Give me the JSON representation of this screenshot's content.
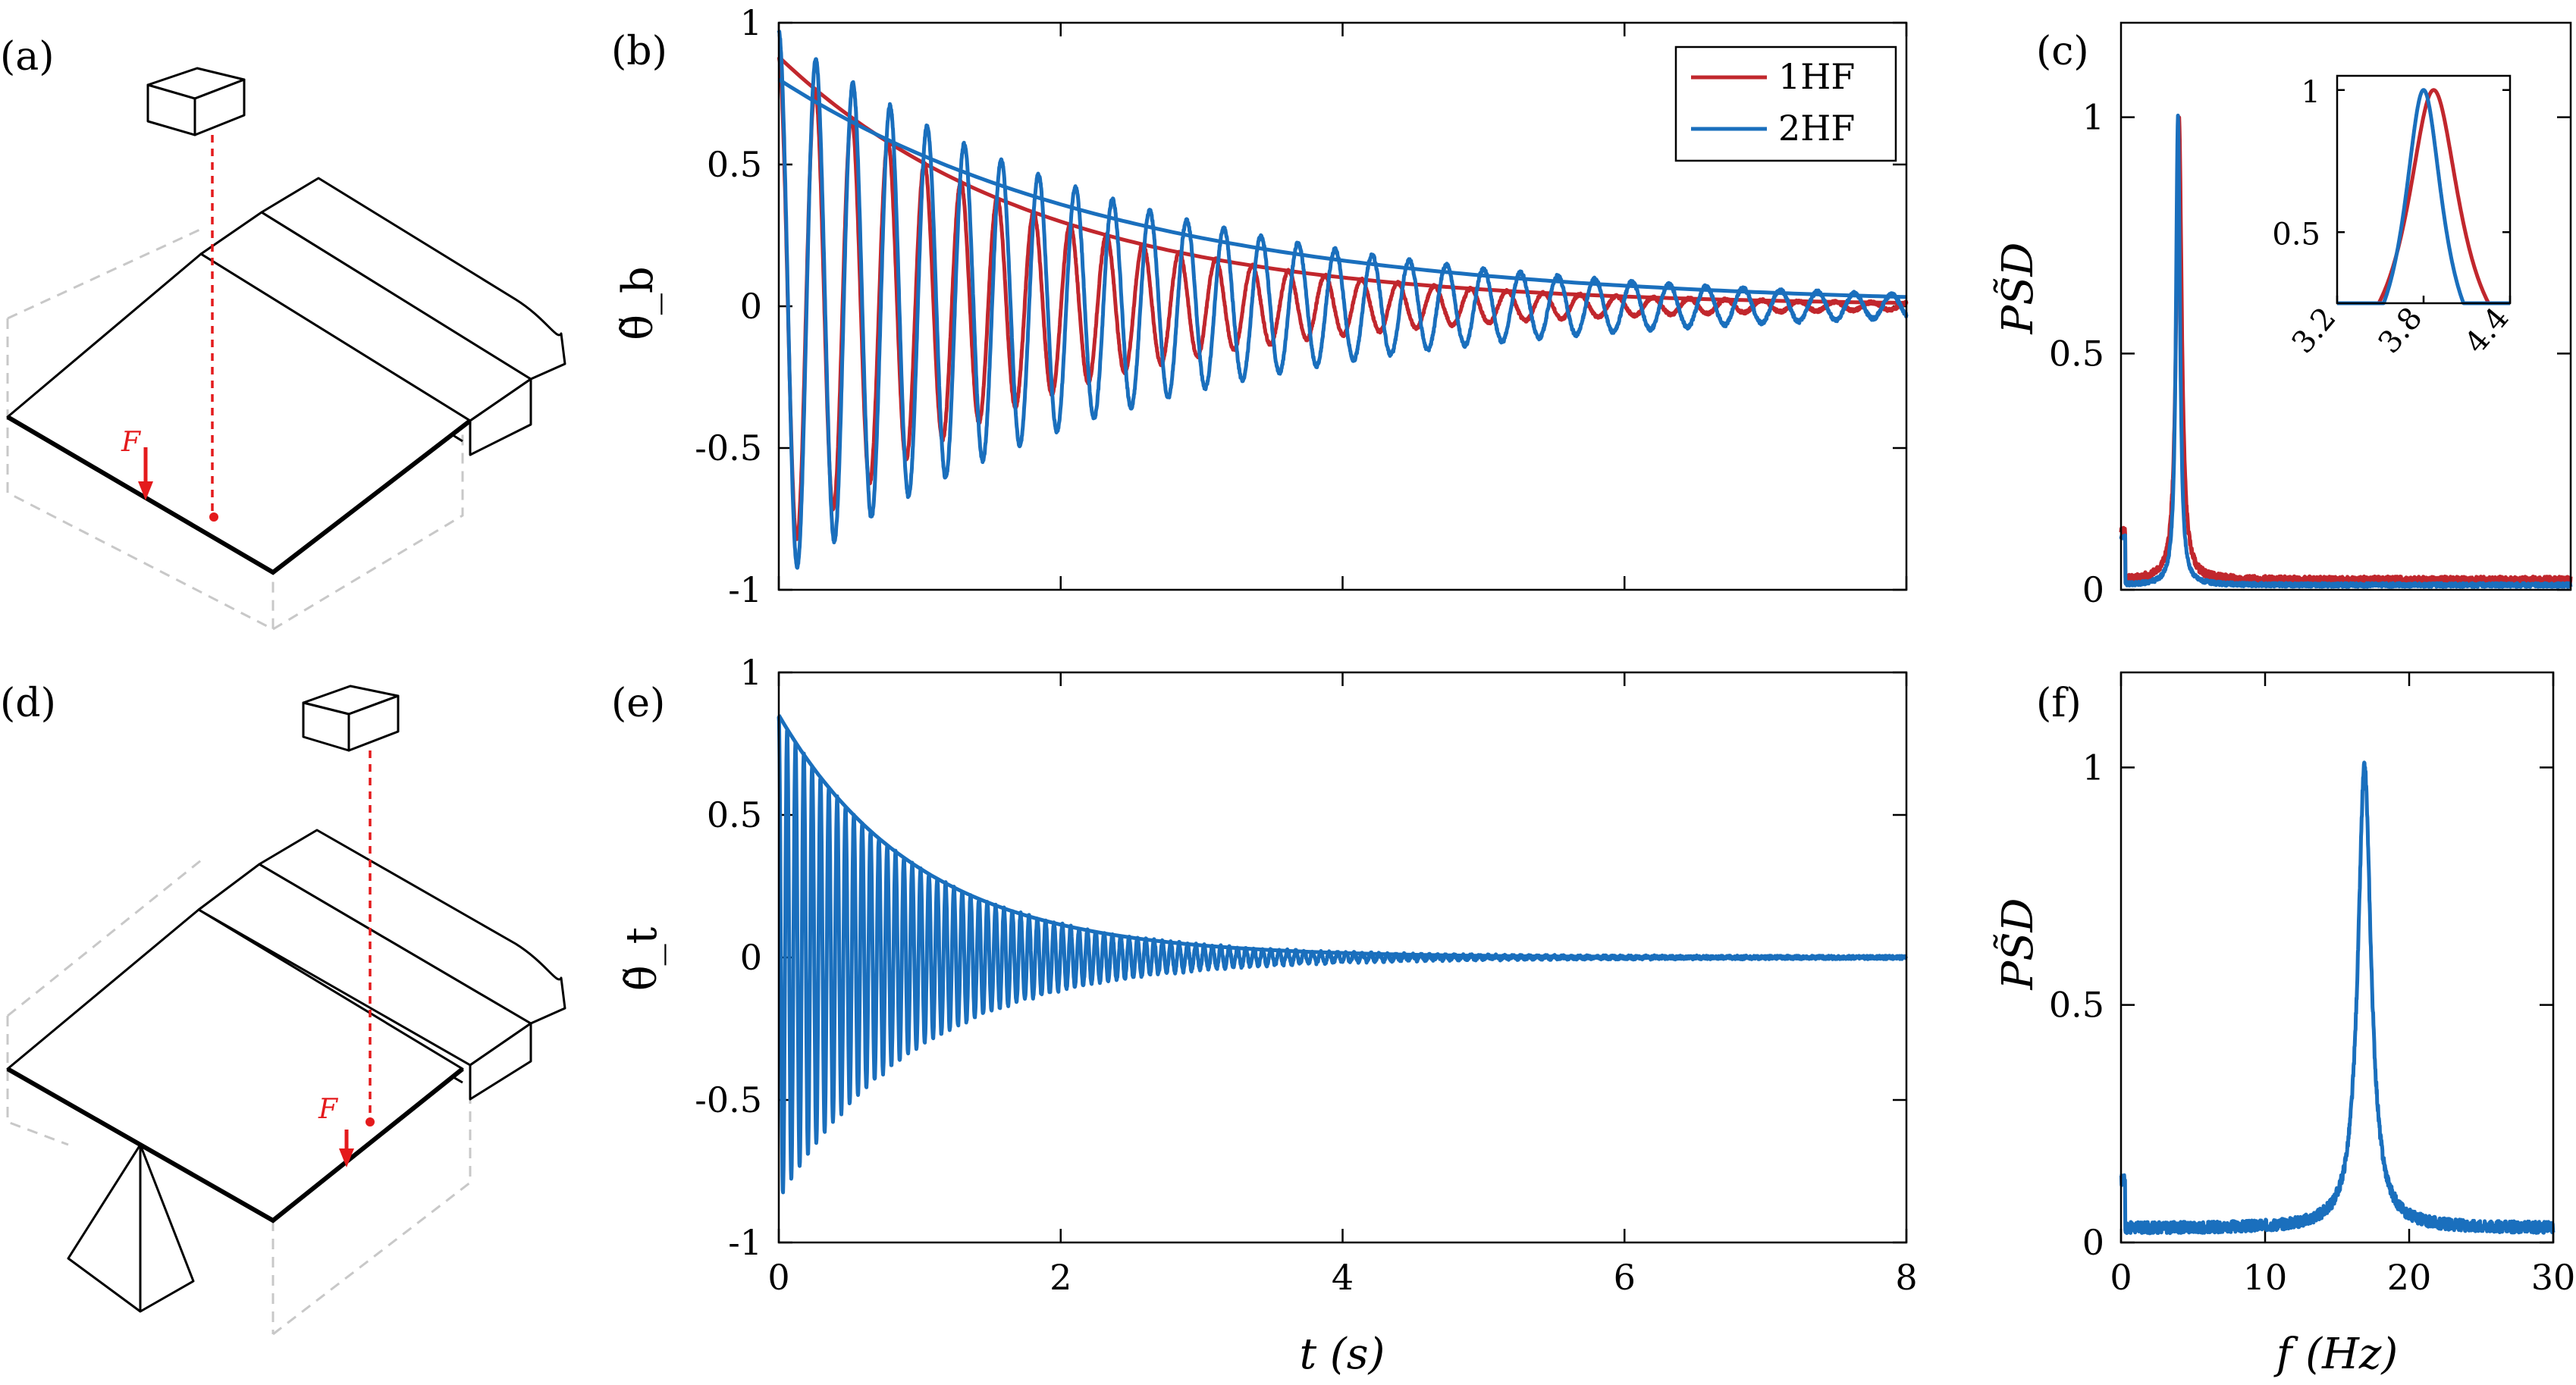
{
  "panel_labels": [
    "(a)",
    "(b)",
    "(c)",
    "(d)",
    "(e)",
    "(f)"
  ],
  "sketch": {
    "force_label": "F"
  },
  "colors": {
    "red": "#c1272d",
    "blue": "#1a6fbd"
  },
  "chart_data": [
    {
      "id": "b",
      "type": "line",
      "title": "",
      "xlabel": "t (s)",
      "ylabel": "θ̃_b",
      "xlim": [
        0,
        8
      ],
      "ylim": [
        -1,
        1
      ],
      "xticks": [
        "0",
        "2",
        "4",
        "6",
        "8"
      ],
      "yticks": [
        "-1",
        "-0.5",
        "0",
        "0.5",
        "1"
      ],
      "legend": {
        "placement": "top-right",
        "entries": [
          "1HF",
          "2HF"
        ]
      },
      "series": [
        {
          "name": "1HF",
          "color": "#c1272d",
          "model": "damped_cosine",
          "amp": 0.88,
          "freq_hz": 3.87,
          "decay_per_s": 0.54,
          "envelope": true,
          "noise": 0.01
        },
        {
          "name": "2HF",
          "color": "#1a6fbd",
          "model": "damped_cosine",
          "amp": 0.97,
          "freq_hz": 3.8,
          "decay_per_s": 0.4,
          "envelope": true,
          "envelope_amp": 0.8,
          "noise": 0.012
        }
      ]
    },
    {
      "id": "c",
      "type": "line",
      "title": "",
      "xlabel": "",
      "ylabel": "PS̃D",
      "xlim": [
        0,
        30
      ],
      "ylim": [
        0,
        1.2
      ],
      "yticks": [
        "0",
        "0.5",
        "1"
      ],
      "series": [
        {
          "name": "1HF",
          "color": "#c1272d",
          "model": "lorentzian",
          "peak_hz": 3.87,
          "width_hz": 0.22,
          "floor": 0.02
        },
        {
          "name": "2HF",
          "color": "#1a6fbd",
          "model": "lorentzian",
          "peak_hz": 3.8,
          "width_hz": 0.16,
          "floor": 0.01
        }
      ],
      "inset": {
        "xlim": [
          3.2,
          4.4
        ],
        "ylim": [
          0.25,
          1.05
        ],
        "xticks": [
          "3.2",
          "3.8",
          "4.4"
        ],
        "yticks": [
          "0.5",
          "1"
        ]
      }
    },
    {
      "id": "e",
      "type": "line",
      "title": "",
      "xlabel": "t (s)",
      "ylabel": "θ̃_t",
      "xlim": [
        0,
        8
      ],
      "ylim": [
        -1,
        1
      ],
      "xticks": [
        "0",
        "2",
        "4",
        "6",
        "8"
      ],
      "yticks": [
        "-1",
        "-0.5",
        "0",
        "0.5",
        "1"
      ],
      "series": [
        {
          "name": "2HF",
          "color": "#1a6fbd",
          "model": "damped_cosine",
          "amp": 0.85,
          "freq_hz": 16.9,
          "decay_per_s": 1.0,
          "envelope": true,
          "noise": 0.012
        }
      ]
    },
    {
      "id": "f",
      "type": "line",
      "title": "",
      "xlabel": "f (Hz)",
      "ylabel": "PS̃D",
      "xlim": [
        0,
        30
      ],
      "ylim": [
        0,
        1.2
      ],
      "xticks": [
        "0",
        "10",
        "20",
        "30"
      ],
      "yticks": [
        "0",
        "0.5",
        "1"
      ],
      "series": [
        {
          "name": "2HF",
          "color": "#1a6fbd",
          "model": "lorentzian",
          "peak_hz": 16.9,
          "width_hz": 0.55,
          "floor": 0.03
        }
      ]
    }
  ]
}
